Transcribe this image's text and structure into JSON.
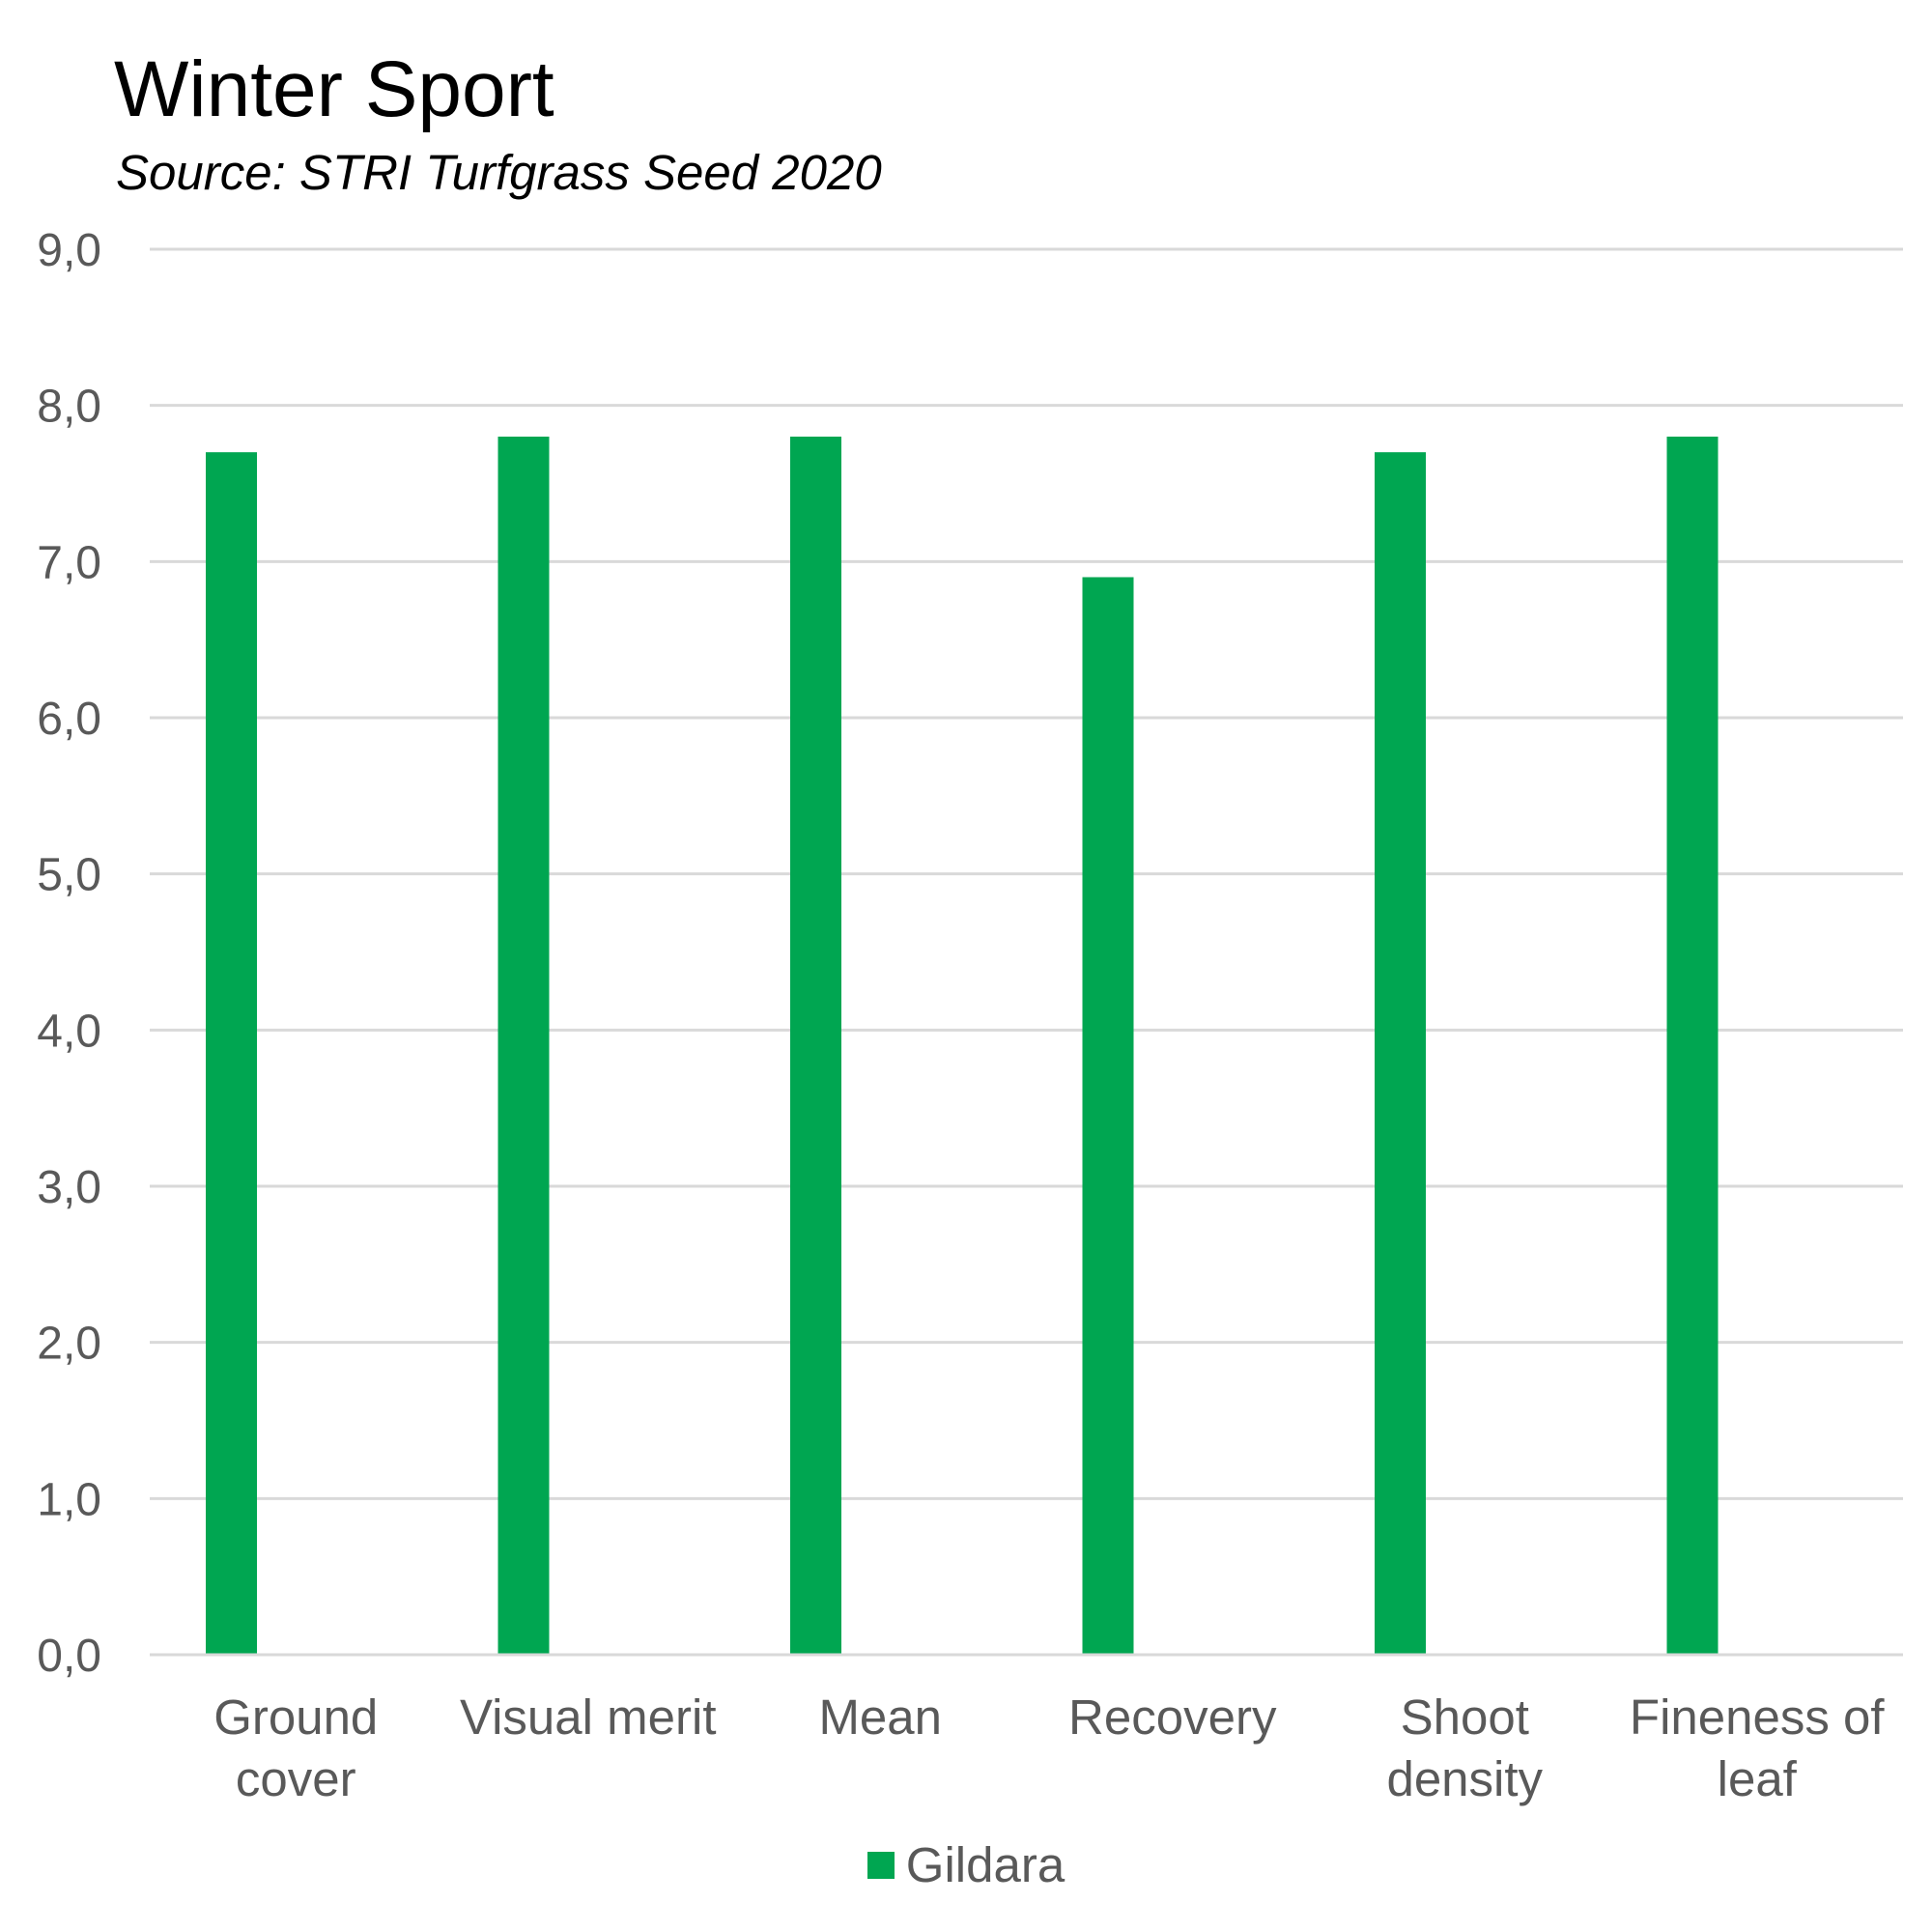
{
  "chart_data": {
    "type": "bar",
    "title": "Winter Sport",
    "subtitle": "Source: STRI Turfgrass Seed 2020",
    "categories": [
      "Ground cover",
      "Visual merit",
      "Mean",
      "Recovery",
      "Shoot density",
      "Fineness of leaf"
    ],
    "category_label_lines": [
      [
        "Ground",
        "cover"
      ],
      [
        "Visual merit"
      ],
      [
        "Mean"
      ],
      [
        "Recovery"
      ],
      [
        "Shoot",
        "density"
      ],
      [
        "Fineness of",
        "leaf"
      ]
    ],
    "series": [
      {
        "name": "Gildara",
        "color": "#00A651",
        "values": [
          7.7,
          7.8,
          7.8,
          6.9,
          7.7,
          7.8
        ]
      }
    ],
    "ylim": [
      0,
      9
    ],
    "yticks": [
      0,
      1,
      2,
      3,
      4,
      5,
      6,
      7,
      8,
      9
    ],
    "ytick_labels": [
      "0,0",
      "1,0",
      "2,0",
      "3,0",
      "4,0",
      "5,0",
      "6,0",
      "7,0",
      "8,0",
      "9,0"
    ],
    "grid": true,
    "legend_position": "bottom"
  }
}
